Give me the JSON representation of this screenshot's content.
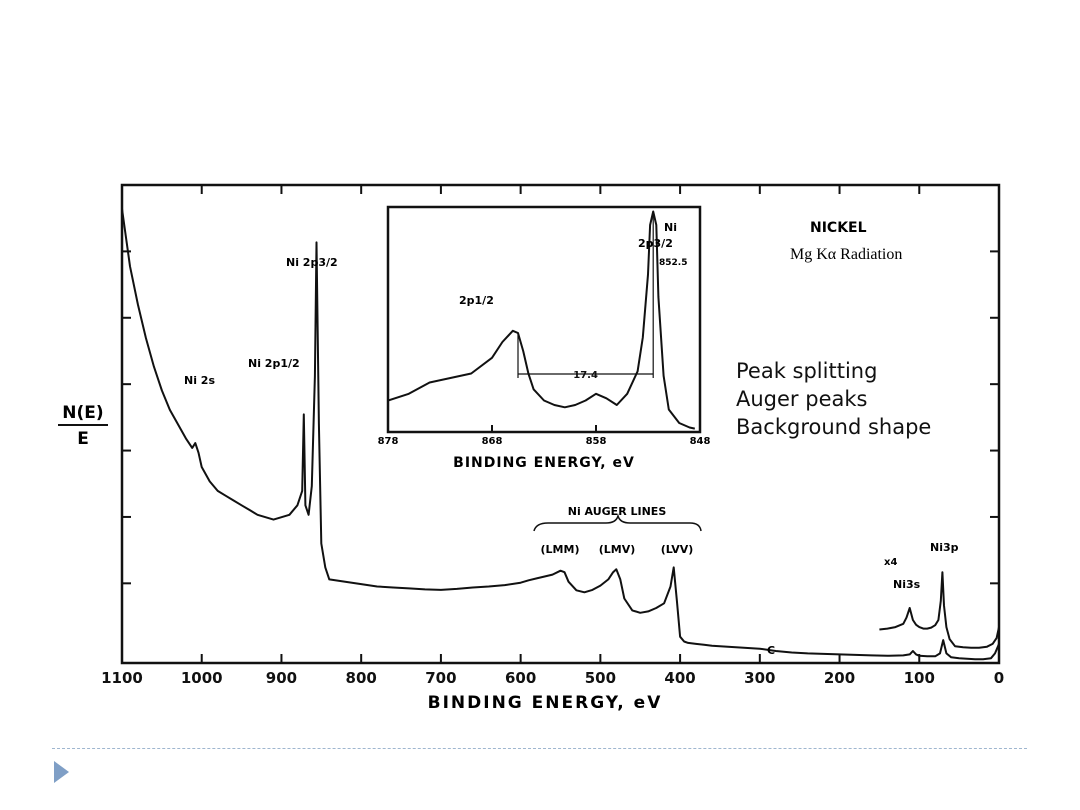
{
  "chart_data": [
    {
      "type": "line",
      "title": "",
      "xlabel": "BINDING ENERGY, eV",
      "ylabel": "N(E)/E",
      "ylabel_top": "N(E)",
      "ylabel_bottom": "E",
      "xlim": [
        1100,
        0
      ],
      "x_ticks": [
        1100,
        1000,
        900,
        800,
        700,
        600,
        500,
        400,
        300,
        200,
        100,
        0
      ],
      "grid": false,
      "series": [
        {
          "x": [
            1100,
            1090,
            1080,
            1070,
            1060,
            1050,
            1040,
            1030,
            1020,
            1012,
            1008,
            1004,
            1000,
            990,
            980,
            970,
            960,
            950,
            940,
            930,
            920,
            910,
            900,
            890,
            880,
            874,
            872,
            870,
            866,
            862,
            858,
            856,
            853,
            850,
            845,
            840,
            820,
            800,
            780,
            760,
            740,
            720,
            700,
            680,
            660,
            640,
            620,
            600,
            590,
            580,
            570,
            560,
            550,
            545,
            540,
            530,
            520,
            510,
            500,
            490,
            484,
            480,
            475,
            470,
            460,
            450,
            440,
            430,
            420,
            412,
            408,
            404,
            400,
            395,
            390,
            380,
            370,
            360,
            340,
            320,
            300,
            280,
            260,
            240,
            220,
            200,
            180,
            160,
            140,
            120,
            112,
            108,
            104,
            100,
            90,
            80,
            74,
            70,
            66,
            60,
            50,
            40,
            30,
            20,
            10,
            5,
            0
          ],
          "y": [
            0.95,
            0.83,
            0.75,
            0.68,
            0.62,
            0.57,
            0.53,
            0.5,
            0.47,
            0.45,
            0.46,
            0.44,
            0.41,
            0.38,
            0.36,
            0.35,
            0.34,
            0.33,
            0.32,
            0.31,
            0.305,
            0.3,
            0.305,
            0.31,
            0.33,
            0.36,
            0.52,
            0.33,
            0.31,
            0.37,
            0.6,
            0.88,
            0.5,
            0.25,
            0.2,
            0.175,
            0.17,
            0.165,
            0.16,
            0.158,
            0.156,
            0.154,
            0.153,
            0.155,
            0.158,
            0.16,
            0.163,
            0.168,
            0.173,
            0.177,
            0.181,
            0.185,
            0.193,
            0.19,
            0.17,
            0.152,
            0.148,
            0.153,
            0.162,
            0.175,
            0.19,
            0.196,
            0.175,
            0.135,
            0.11,
            0.105,
            0.108,
            0.115,
            0.125,
            0.16,
            0.2,
            0.13,
            0.055,
            0.045,
            0.042,
            0.04,
            0.038,
            0.036,
            0.034,
            0.032,
            0.03,
            0.025,
            0.022,
            0.02,
            0.019,
            0.018,
            0.017,
            0.016,
            0.015,
            0.016,
            0.018,
            0.025,
            0.018,
            0.015,
            0.014,
            0.014,
            0.02,
            0.048,
            0.02,
            0.012,
            0.01,
            0.009,
            0.008,
            0.008,
            0.01,
            0.02,
            0.04
          ]
        },
        {
          "name": "x4",
          "x": [
            150,
            140,
            130,
            120,
            116,
            112,
            108,
            104,
            100,
            95,
            90,
            85,
            80,
            76,
            73,
            71,
            69,
            66,
            62,
            55,
            45,
            35,
            25,
            15,
            8,
            3,
            0
          ],
          "y": [
            0.07,
            0.072,
            0.075,
            0.082,
            0.095,
            0.115,
            0.09,
            0.08,
            0.075,
            0.072,
            0.072,
            0.074,
            0.079,
            0.09,
            0.13,
            0.19,
            0.12,
            0.075,
            0.05,
            0.035,
            0.033,
            0.032,
            0.032,
            0.034,
            0.04,
            0.052,
            0.075
          ]
        }
      ],
      "annotations": {
        "ni2s": "Ni 2s",
        "ni2p32": "Ni 2p3/2",
        "ni2p12": "Ni 2p1/2",
        "auger_title": "Ni AUGER LINES",
        "lmm": "(LMM)",
        "lmv": "(LMV)",
        "lvv": "(LVV)",
        "x4": "x4",
        "ni3s": "Ni3s",
        "ni3p": "Ni3p",
        "c": "C"
      }
    },
    {
      "type": "line",
      "title": "",
      "xlabel": "BINDING ENERGY, eV",
      "ylabel": "",
      "xlim": [
        878,
        848
      ],
      "x_ticks": [
        878,
        868,
        858,
        848
      ],
      "grid": false,
      "series": [
        {
          "x": [
            878,
            876,
            874,
            872,
            870,
            868,
            867,
            866,
            865.5,
            865,
            864.5,
            864,
            863,
            862,
            861,
            860,
            859,
            858,
            857,
            856,
            855,
            854,
            853.5,
            853,
            852.8,
            852.5,
            852.2,
            852,
            851.5,
            851,
            850,
            849,
            848.5
          ],
          "y": [
            0.14,
            0.17,
            0.22,
            0.24,
            0.26,
            0.33,
            0.4,
            0.45,
            0.44,
            0.36,
            0.26,
            0.19,
            0.14,
            0.12,
            0.11,
            0.12,
            0.14,
            0.17,
            0.15,
            0.12,
            0.17,
            0.27,
            0.42,
            0.7,
            0.92,
            0.98,
            0.92,
            0.6,
            0.25,
            0.1,
            0.04,
            0.02,
            0.015
          ]
        }
      ],
      "marked_splitting": 17.4,
      "marked_splitting_label": "17.4",
      "peak_value_label": "852.5",
      "annotations": {
        "ni": "Ni",
        "p32": "2p3/2",
        "p12": "2p1/2"
      }
    }
  ],
  "legend": {
    "title": "NICKEL",
    "subtitle": "Mg Kα Radiation"
  },
  "notes": [
    "Peak splitting",
    "Auger peaks",
    "Background shape"
  ]
}
